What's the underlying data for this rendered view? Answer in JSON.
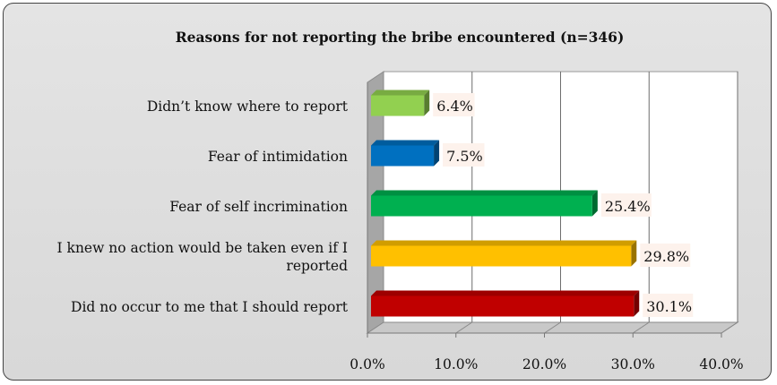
{
  "chart_data": {
    "type": "bar",
    "orientation": "horizontal",
    "title": "Reasons for not reporting the bribe encountered (n=346)",
    "categories": [
      [
        "Didn’t know where to report"
      ],
      [
        "Fear of intimidation"
      ],
      [
        "Fear of self incrimination"
      ],
      [
        "I knew no action would be taken even if I",
        "reported"
      ],
      [
        "Did no occur to me that I should report"
      ]
    ],
    "values": [
      6.4,
      7.5,
      25.4,
      29.8,
      30.1
    ],
    "data_labels": [
      "6.4%",
      "7.5%",
      "25.4%",
      "29.8%",
      "30.1%"
    ],
    "bar_colors": [
      "#92d050",
      "#0070c0",
      "#00b050",
      "#ffc000",
      "#c00000"
    ],
    "xlim": [
      0,
      40
    ],
    "xticks": [
      0,
      10,
      20,
      30,
      40
    ],
    "xtick_labels": [
      "0.0%",
      "10.0%",
      "20.0%",
      "30.0%",
      "40.0%"
    ],
    "grid": "vertical major gridlines",
    "legend": "none",
    "style": "3D clustered bar"
  }
}
